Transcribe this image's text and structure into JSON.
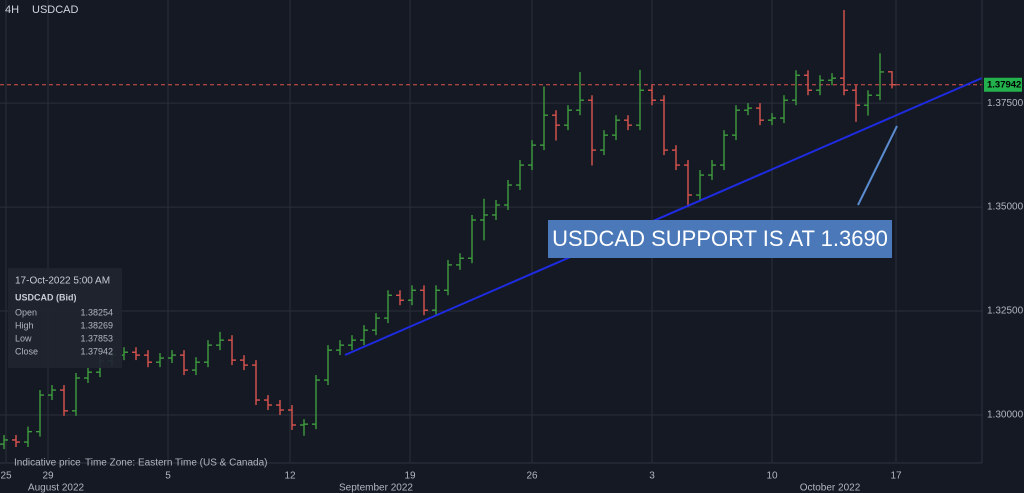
{
  "header": {
    "timeframe": "4H",
    "symbol": "USDCAD"
  },
  "chart_data": {
    "type": "ohlc",
    "x": [
      1,
      4,
      7,
      10,
      13,
      16,
      19,
      22,
      25,
      28,
      31,
      34,
      37,
      40,
      43,
      46,
      49,
      52,
      55,
      58,
      61,
      64,
      67,
      70,
      73,
      76,
      79,
      82,
      85,
      88,
      91,
      94,
      97,
      100,
      103,
      106,
      109,
      112,
      115,
      118,
      121,
      124,
      127,
      130,
      133,
      136,
      139,
      142,
      145,
      148,
      151,
      154,
      157,
      160,
      163,
      166,
      169,
      172,
      175,
      178,
      181,
      184,
      187,
      190,
      193,
      196,
      199,
      202,
      205,
      208,
      211,
      214,
      217,
      220,
      223
    ],
    "open": [
      1.293,
      1.294,
      1.2935,
      1.296,
      1.3048,
      1.306,
      1.301,
      1.3089,
      1.3103,
      1.313,
      1.3144,
      1.3151,
      1.3144,
      1.3127,
      1.3137,
      1.3144,
      1.3108,
      1.3127,
      1.3168,
      1.318,
      1.3132,
      1.312,
      1.3036,
      1.3024,
      1.3012,
      1.2976,
      1.2978,
      1.3084,
      1.3156,
      1.3168,
      1.318,
      1.3204,
      1.3233,
      1.3288,
      1.3276,
      1.33,
      1.3252,
      1.33,
      1.3361,
      1.3377,
      1.3469,
      1.3481,
      1.3505,
      1.3553,
      1.3601,
      1.3649,
      1.3721,
      1.3697,
      1.3733,
      1.3757,
      1.3637,
      1.3673,
      1.3709,
      1.3697,
      1.3781,
      1.3757,
      1.3637,
      1.3601,
      1.3529,
      1.3577,
      1.3601,
      1.3673,
      1.3733,
      1.3738,
      1.3709,
      1.3714,
      1.3757,
      1.3817,
      1.3781,
      1.3805,
      1.381,
      1.3781,
      1.3745,
      1.3769,
      1.38254
    ],
    "high": [
      1.2952,
      1.2952,
      1.2972,
      1.306,
      1.3072,
      1.3072,
      1.3101,
      1.3115,
      1.3142,
      1.3156,
      1.3163,
      1.3163,
      1.3156,
      1.3149,
      1.3156,
      1.3156,
      1.3139,
      1.318,
      1.32,
      1.3192,
      1.3144,
      1.3132,
      1.3048,
      1.3036,
      1.3024,
      1.299,
      1.3096,
      1.3168,
      1.318,
      1.3192,
      1.3216,
      1.3245,
      1.33,
      1.33,
      1.3312,
      1.3312,
      1.3312,
      1.3373,
      1.3389,
      1.3481,
      1.352,
      1.3517,
      1.3565,
      1.3613,
      1.3661,
      1.379,
      1.3733,
      1.3745,
      1.3825,
      1.3769,
      1.3685,
      1.3721,
      1.3721,
      1.383,
      1.3793,
      1.3769,
      1.3649,
      1.3613,
      1.3589,
      1.3613,
      1.3685,
      1.3745,
      1.375,
      1.375,
      1.3726,
      1.3769,
      1.3829,
      1.3829,
      1.3817,
      1.3822,
      1.3974,
      1.3793,
      1.3781,
      1.387,
      1.38269
    ],
    "low": [
      1.2918,
      1.2923,
      1.2923,
      1.2948,
      1.3036,
      1.2998,
      1.2998,
      1.3077,
      1.3091,
      1.3118,
      1.3132,
      1.3132,
      1.3115,
      1.3115,
      1.3125,
      1.3096,
      1.3096,
      1.3115,
      1.3156,
      1.312,
      1.3108,
      1.3024,
      1.3012,
      1.3,
      1.2964,
      1.295,
      1.2966,
      1.3072,
      1.3144,
      1.3156,
      1.3168,
      1.3192,
      1.3221,
      1.3264,
      1.3264,
      1.324,
      1.324,
      1.3288,
      1.3349,
      1.3365,
      1.342,
      1.3469,
      1.3493,
      1.3541,
      1.3589,
      1.3637,
      1.366,
      1.3685,
      1.3721,
      1.36,
      1.3625,
      1.3661,
      1.3685,
      1.3685,
      1.3745,
      1.3625,
      1.3589,
      1.35,
      1.3517,
      1.3565,
      1.3589,
      1.3661,
      1.3721,
      1.3697,
      1.3697,
      1.3702,
      1.3745,
      1.3769,
      1.3769,
      1.3793,
      1.3769,
      1.3705,
      1.372,
      1.3757,
      1.37853
    ],
    "close": [
      1.294,
      1.2935,
      1.296,
      1.3048,
      1.306,
      1.301,
      1.3089,
      1.3103,
      1.313,
      1.3144,
      1.3151,
      1.3144,
      1.3127,
      1.3137,
      1.3144,
      1.3108,
      1.3127,
      1.3168,
      1.318,
      1.3132,
      1.312,
      1.3036,
      1.3024,
      1.3012,
      1.2976,
      1.2978,
      1.3084,
      1.3156,
      1.3168,
      1.318,
      1.3204,
      1.3233,
      1.3288,
      1.3276,
      1.33,
      1.3252,
      1.33,
      1.3361,
      1.3377,
      1.3469,
      1.3481,
      1.3505,
      1.3553,
      1.3601,
      1.3649,
      1.3721,
      1.3697,
      1.3733,
      1.3757,
      1.3637,
      1.3673,
      1.3709,
      1.3697,
      1.3781,
      1.3757,
      1.3637,
      1.3601,
      1.3529,
      1.3577,
      1.3601,
      1.3673,
      1.3733,
      1.3738,
      1.3709,
      1.3714,
      1.3757,
      1.3817,
      1.3781,
      1.3805,
      1.381,
      1.3781,
      1.3745,
      1.3769,
      1.3825,
      1.37942
    ],
    "up_color": "#3f9c3f",
    "down_color": "#d9534f",
    "xlim": [
      0,
      245.5
    ],
    "xticks": [
      {
        "value": 1.5,
        "label": "25"
      },
      {
        "value": 12,
        "label": "29"
      },
      {
        "value": 42,
        "label": "5"
      },
      {
        "value": 72.5,
        "label": "12"
      },
      {
        "value": 102.5,
        "label": "19"
      },
      {
        "value": 133,
        "label": "26"
      },
      {
        "value": 163,
        "label": "3"
      },
      {
        "value": 193,
        "label": "10"
      },
      {
        "value": 224,
        "label": "17"
      }
    ],
    "month_labels": [
      {
        "value": 14,
        "label": "August 2022"
      },
      {
        "value": 94,
        "label": "September 2022"
      },
      {
        "value": 207.5,
        "label": "October 2022"
      }
    ],
    "ylim": [
      1.2887,
      1.3998
    ],
    "yticks": [
      {
        "value": 1.3,
        "label": "1.30000"
      },
      {
        "value": 1.325,
        "label": "1.32500"
      },
      {
        "value": 1.35,
        "label": "1.35000"
      },
      {
        "value": 1.375,
        "label": "1.37500"
      }
    ],
    "grid": true,
    "last_price_line": true,
    "annotation": "USDCAD SUPPORT IS AT 1.3690",
    "info": {
      "datetime": "17-Oct-2022 5:00 AM",
      "instrument": "USDCAD (Bid)",
      "labels": [
        "Open",
        "High",
        "Low",
        "Close"
      ]
    },
    "footer": [
      "Indicative price",
      "Time Zone: Eastern Time (US & Canada)"
    ]
  }
}
